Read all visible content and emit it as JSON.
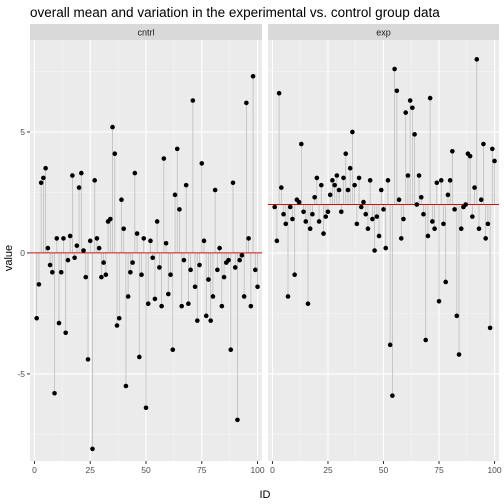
{
  "chart_data": {
    "type": "scatter",
    "title": "overall mean and variation in the experimental vs. control group data",
    "xlabel": "ID",
    "ylabel": "value",
    "xlim": [
      -2,
      102
    ],
    "ylim": [
      -8.6,
      8.8
    ],
    "x_ticks": [
      0,
      25,
      50,
      75,
      100
    ],
    "y_ticks": [
      -5,
      0,
      5
    ],
    "grid": true,
    "facet_layout": "two panels side by side",
    "colors": {
      "panel_background": "#ebebeb",
      "grid_major": "#ffffff",
      "strip_background": "#d9d9d9",
      "points": "#000000",
      "segments": "#bdbdbd",
      "mean_line": "#cc1111"
    },
    "panels": [
      {
        "label": "cntrl",
        "mean": 0.0,
        "x": [
          1,
          2,
          3,
          4,
          5,
          6,
          7,
          8,
          9,
          10,
          11,
          12,
          13,
          14,
          15,
          16,
          17,
          18,
          19,
          20,
          21,
          22,
          23,
          24,
          25,
          26,
          27,
          28,
          29,
          30,
          31,
          32,
          33,
          34,
          35,
          36,
          37,
          38,
          39,
          40,
          41,
          42,
          43,
          44,
          45,
          46,
          47,
          48,
          49,
          50,
          51,
          52,
          53,
          54,
          55,
          56,
          57,
          58,
          59,
          60,
          61,
          62,
          63,
          64,
          65,
          66,
          67,
          68,
          69,
          70,
          71,
          72,
          73,
          74,
          75,
          76,
          77,
          78,
          79,
          80,
          81,
          82,
          83,
          84,
          85,
          86,
          87,
          88,
          89,
          90,
          91,
          92,
          93,
          94,
          95,
          96,
          97,
          98,
          99,
          100
        ],
        "y": [
          -2.7,
          -1.3,
          2.9,
          3.1,
          3.5,
          0.2,
          -0.5,
          -0.8,
          -5.8,
          0.6,
          -2.9,
          -0.8,
          0.6,
          -3.3,
          -0.3,
          0.7,
          3.2,
          -0.2,
          0.3,
          2.7,
          3.3,
          0.1,
          -1.0,
          -4.4,
          0.5,
          -8.1,
          3.0,
          0.6,
          0.2,
          -1.0,
          -0.4,
          -0.9,
          1.3,
          1.4,
          5.2,
          4.1,
          -3.0,
          -2.7,
          2.2,
          1.0,
          -5.5,
          -1.8,
          -0.8,
          -0.4,
          3.3,
          0.8,
          -4.3,
          -0.9,
          0.6,
          -6.4,
          -2.1,
          0.5,
          -0.2,
          -1.9,
          1.3,
          -0.6,
          -2.2,
          3.9,
          0.4,
          -1.7,
          -0.9,
          -4.0,
          2.4,
          4.3,
          1.8,
          -2.2,
          -0.3,
          2.8,
          -2.1,
          -0.7,
          6.3,
          -1.4,
          -2.8,
          -0.5,
          3.7,
          0.5,
          -2.6,
          -1.1,
          -2.8,
          -1.8,
          2.6,
          -0.7,
          0.2,
          -2.2,
          -1.0,
          -0.4,
          -0.3,
          -4.0,
          2.9,
          -0.6,
          -6.9,
          -0.3,
          -0.1,
          -1.8,
          6.2,
          0.6,
          -2.2,
          7.3,
          -0.7,
          -1.4
        ]
      },
      {
        "label": "exp",
        "mean": 2.0,
        "x": [
          1,
          2,
          3,
          4,
          5,
          6,
          7,
          8,
          9,
          10,
          11,
          12,
          13,
          14,
          15,
          16,
          17,
          18,
          19,
          20,
          21,
          22,
          23,
          24,
          25,
          26,
          27,
          28,
          29,
          30,
          31,
          32,
          33,
          34,
          35,
          36,
          37,
          38,
          39,
          40,
          41,
          42,
          43,
          44,
          45,
          46,
          47,
          48,
          49,
          50,
          51,
          52,
          53,
          54,
          55,
          56,
          57,
          58,
          59,
          60,
          61,
          62,
          63,
          64,
          65,
          66,
          67,
          68,
          69,
          70,
          71,
          72,
          73,
          74,
          75,
          76,
          77,
          78,
          79,
          80,
          81,
          82,
          83,
          84,
          85,
          86,
          87,
          88,
          89,
          90,
          91,
          92,
          93,
          94,
          95,
          96,
          97,
          98,
          99,
          100
        ],
        "y": [
          1.9,
          0.5,
          6.6,
          2.7,
          1.6,
          1.2,
          -1.8,
          1.9,
          1.4,
          -0.9,
          2.2,
          2.1,
          4.5,
          1.7,
          1.3,
          -2.1,
          1.0,
          1.6,
          2.3,
          3.1,
          1.3,
          2.8,
          0.8,
          1.5,
          1.7,
          2.4,
          3.0,
          2.8,
          3.2,
          2.6,
          1.7,
          3.1,
          4.1,
          2.6,
          3.5,
          5.0,
          2.8,
          1.2,
          3.1,
          1.9,
          2.1,
          1.6,
          1.0,
          3.0,
          1.4,
          0.1,
          1.5,
          0.7,
          2.6,
          1.8,
          0.2,
          3.0,
          -3.8,
          -5.9,
          7.6,
          6.7,
          2.2,
          0.6,
          1.4,
          5.8,
          3.2,
          6.3,
          6.0,
          4.9,
          2.0,
          3.2,
          2.3,
          1.6,
          -3.6,
          0.7,
          6.4,
          1.3,
          1.0,
          2.9,
          -2.0,
          3.0,
          1.2,
          -1.2,
          2.4,
          3.0,
          4.2,
          1.8,
          -2.6,
          -4.2,
          1.0,
          1.9,
          2.0,
          4.1,
          4.0,
          1.5,
          2.7,
          8.0,
          1.0,
          2.2,
          4.5,
          0.6,
          1.2,
          -3.1,
          4.3,
          3.8
        ]
      }
    ]
  }
}
